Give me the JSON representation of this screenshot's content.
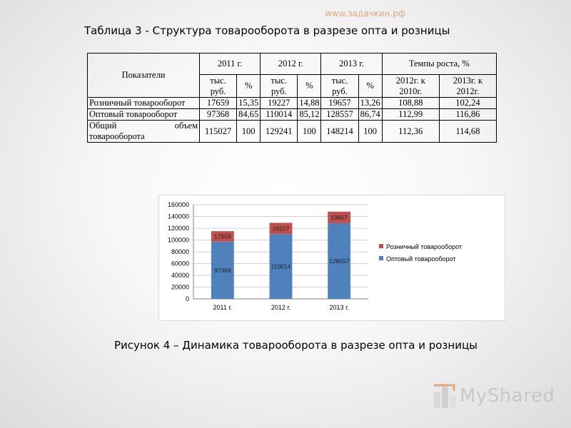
{
  "watermark": "www.задачкин.рф",
  "title": "Таблица 3 -  Структура товарооборота в разрезе опта и розницы",
  "table": {
    "col_indicator": "Показатели",
    "years": [
      "2011 г.",
      "2012 г.",
      "2013 г."
    ],
    "growth_header": "Темпы роста, %",
    "sub_value": "тыс. руб.",
    "sub_pct": "%",
    "growth_cols": [
      "2012г. к 2010г.",
      "2013г. к 2012г."
    ],
    "rows": [
      {
        "label": "Розничный товарооборот",
        "cells": [
          "17659",
          "15,35",
          "19227",
          "14,88",
          "19657",
          "13,26",
          "108,88",
          "102,24"
        ]
      },
      {
        "label": "Оптовый товарооборот",
        "cells": [
          "97368",
          "84,65",
          "110014",
          "85,12",
          "128557",
          "86,74",
          "112,99",
          "116,86"
        ]
      },
      {
        "label_a": "Общий",
        "label_b": "объем",
        "label_c": "товарооборота",
        "cells": [
          "115027",
          "100",
          "129241",
          "100",
          "148214",
          "100",
          "112,36",
          "114,68"
        ]
      }
    ]
  },
  "chart_data": {
    "type": "bar",
    "stacked": true,
    "categories": [
      "2011 г.",
      "2012 г.",
      "2013 г."
    ],
    "series": [
      {
        "name": "Оптовый товарооборот",
        "values": [
          97368,
          110014,
          128557
        ],
        "color": "#4f81bd"
      },
      {
        "name": "Розничный товарооборот",
        "values": [
          17659,
          19227,
          19657
        ],
        "color": "#c0504d"
      }
    ],
    "yticks": [
      "0",
      "20000",
      "40000",
      "60000",
      "80000",
      "100000",
      "120000",
      "140000",
      "160000"
    ],
    "ylim": [
      0,
      160000
    ],
    "legend": [
      "Розничный товарооборот",
      "Оптовый товарооборот"
    ],
    "legend_position": "right",
    "grid": true
  },
  "caption": "Рисунок 4 – Динамика товарооборота в разрезе опта и розницы",
  "logo": "MyShared"
}
